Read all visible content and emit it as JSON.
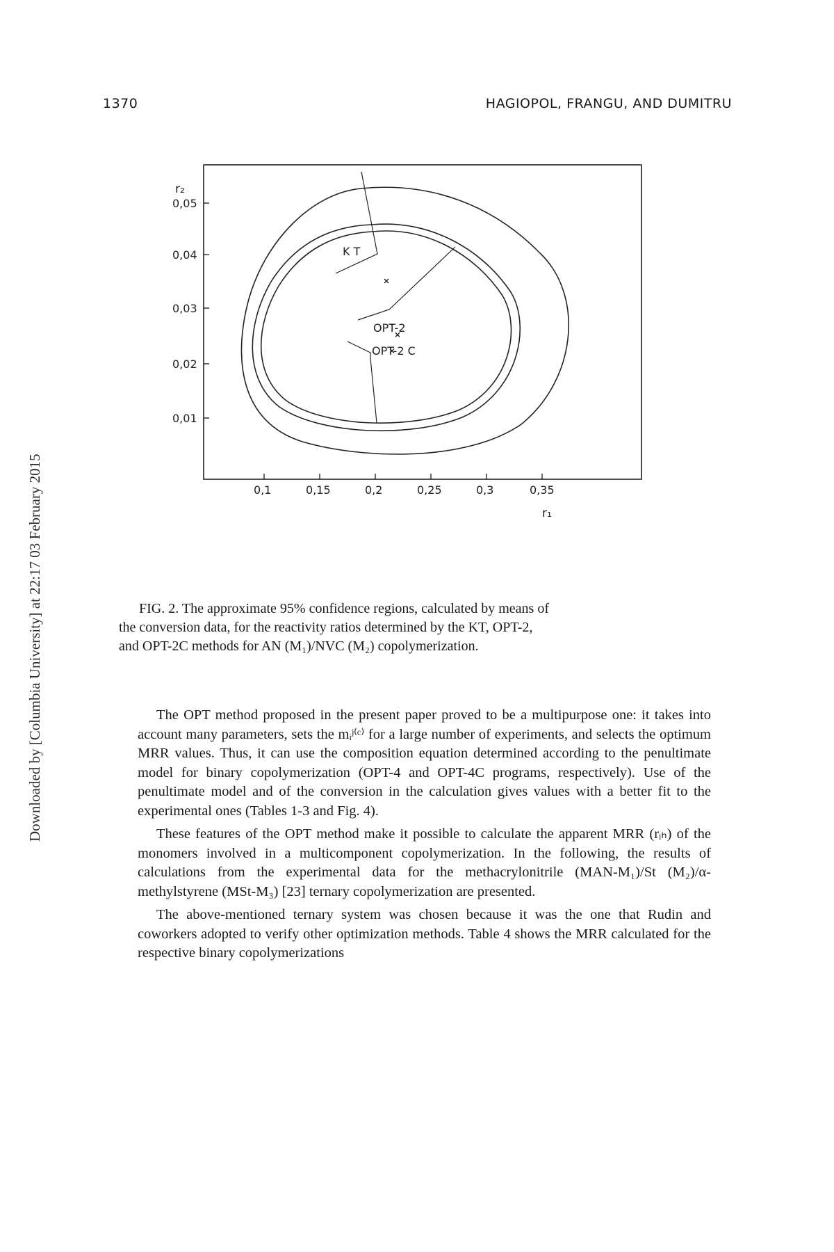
{
  "header": {
    "page_number": "1370",
    "authors": "HAGIOPOL, FRANGU, AND DUMITRU"
  },
  "side_note": "Downloaded by [Columbia University] at 22:17 03 February 2015",
  "figure": {
    "y_axis_label": "r₂",
    "x_axis_label": "r₁",
    "y_ticks": [
      "0,05",
      "0,04",
      "0,03",
      "0,02",
      "0,01"
    ],
    "x_ticks": [
      "0,1",
      "0,15",
      "0,2",
      "0,25",
      "0,3",
      "0,35"
    ],
    "labels": {
      "kt": "K T",
      "opt2": "OPT-2",
      "opt2c": "OPT-2 C"
    }
  },
  "chart_data": {
    "type": "scatter",
    "xlabel": "r₁",
    "ylabel": "r₂",
    "xlim": [
      0.07,
      0.4
    ],
    "ylim": [
      0.0,
      0.057
    ],
    "x_ticks": [
      0.1,
      0.15,
      0.2,
      0.25,
      0.3,
      0.35
    ],
    "y_ticks": [
      0.01,
      0.02,
      0.03,
      0.04,
      0.05
    ],
    "points": [
      {
        "name": "K T",
        "x": 0.21,
        "y": 0.0355
      },
      {
        "name": "OPT-2",
        "x": 0.22,
        "y": 0.0255
      },
      {
        "name": "OPT-2 C",
        "x": 0.215,
        "y": 0.0225
      }
    ]
  },
  "caption": {
    "line1": "FIG. 2. The approximate 95% confidence regions, calculated by means of",
    "line2": "the conversion data, for the reactivity ratios determined by the KT, OPT-2,",
    "line3": "and OPT-2C methods for AN (M₁)/NVC (M₂) copolymerization."
  },
  "body": {
    "p1": "The OPT method proposed in the present paper proved to be a multipurpose one: it takes into account many parameters, sets the mᵢʲ⁽ᶜ⁾ for a large number of experiments, and selects the optimum MRR values. Thus, it can use the composition equation determined according to the penultimate model for binary copolymerization (OPT-4 and OPT-4C programs, respectively). Use of the penultimate model and of the conversion in the calculation gives values with a better fit to the experimental ones (Tables 1-3 and Fig. 4).",
    "p2": "These features of the OPT method make it possible to calculate the apparent MRR (rᵢₕ) of the monomers involved in a multicomponent copolymerization. In the following, the results of calculations from the experimental data for the methacrylonitrile (MAN-M₁)/St (M₂)/α-methylstyrene (MSt-M₃) [23] ternary copolymerization are presented.",
    "p3": "The above-mentioned ternary system was chosen because it was the one that Rudin and coworkers adopted to verify other optimization methods. Table 4 shows the MRR calculated for the respective binary copolymerizations"
  }
}
